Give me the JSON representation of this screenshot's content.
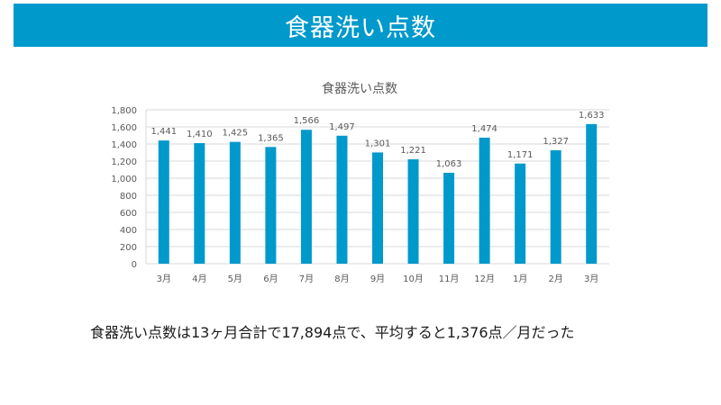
{
  "slide": {
    "title": "食器洗い点数",
    "summary": "食器洗い点数は13ヶ月合計で17,894点で、平均すると1,376点／月だった"
  },
  "colors": {
    "accent": "#0099cc",
    "bar": "#0099cc",
    "grid": "#d9d9d9",
    "axis_text": "#595959",
    "title_text": "#595959"
  },
  "chart_data": {
    "type": "bar",
    "title": "食器洗い点数",
    "categories": [
      "3月",
      "4月",
      "5月",
      "6月",
      "7月",
      "8月",
      "9月",
      "10月",
      "11月",
      "12月",
      "1月",
      "2月",
      "3月"
    ],
    "values": [
      1441,
      1410,
      1425,
      1365,
      1566,
      1497,
      1301,
      1221,
      1063,
      1474,
      1171,
      1327,
      1633
    ],
    "value_labels": [
      "1,441",
      "1,410",
      "1,425",
      "1,365",
      "1,566",
      "1,497",
      "1,301",
      "1,221",
      "1,063",
      "1,474",
      "1,171",
      "1,327",
      "1,633"
    ],
    "ylim": [
      0,
      1800
    ],
    "yticks": [
      0,
      200,
      400,
      600,
      800,
      1000,
      1200,
      1400,
      1600,
      1800
    ],
    "ytick_labels": [
      "0",
      "200",
      "400",
      "600",
      "800",
      "1,000",
      "1,200",
      "1,400",
      "1,600",
      "1,800"
    ],
    "grid": true,
    "legend": "none",
    "xlabel": "",
    "ylabel": ""
  }
}
